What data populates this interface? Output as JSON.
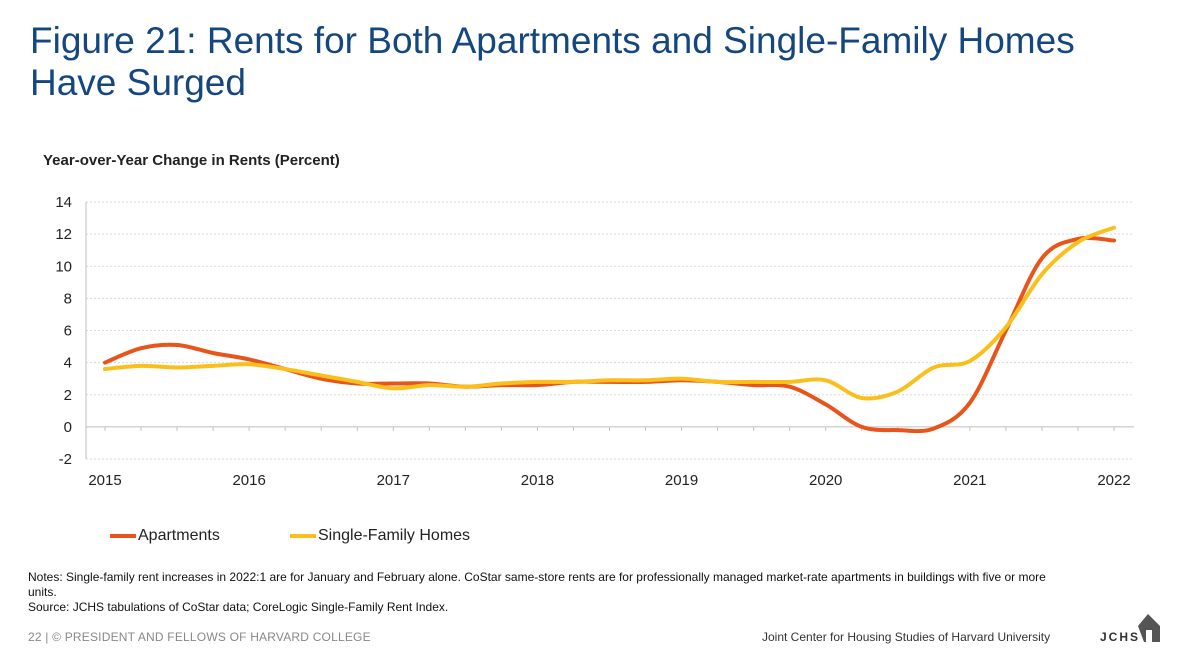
{
  "title": "Figure 21: Rents for Both Apartments and Single-Family Homes Have Surged",
  "chart_data": {
    "type": "line",
    "ylabel": "Year-over-Year Change in Rents (Percent)",
    "xlabel": "",
    "ylim": [
      -2,
      14
    ],
    "yticks": [
      "14",
      "12",
      "10",
      "8",
      "6",
      "4",
      "2",
      "0",
      "-2"
    ],
    "xlim": [
      2015,
      2022
    ],
    "xticks": [
      "2015",
      "2016",
      "2017",
      "2018",
      "2019",
      "2020",
      "2021",
      "2022"
    ],
    "grid": true,
    "legend_position": "bottom-left",
    "series": [
      {
        "name": "Apartments",
        "color": "#e8541a",
        "x": [
          2015.0,
          2015.25,
          2015.5,
          2015.75,
          2016.0,
          2016.25,
          2016.5,
          2016.75,
          2017.0,
          2017.25,
          2017.5,
          2017.75,
          2018.0,
          2018.25,
          2018.5,
          2018.75,
          2019.0,
          2019.25,
          2019.5,
          2019.75,
          2020.0,
          2020.25,
          2020.5,
          2020.75,
          2021.0,
          2021.25,
          2021.5,
          2021.75,
          2022.0
        ],
        "values": [
          4.0,
          4.9,
          5.1,
          4.6,
          4.2,
          3.6,
          3.0,
          2.7,
          2.7,
          2.7,
          2.5,
          2.6,
          2.6,
          2.8,
          2.8,
          2.8,
          2.9,
          2.8,
          2.6,
          2.5,
          1.4,
          0.0,
          -0.2,
          -0.1,
          1.5,
          6.0,
          10.5,
          11.7,
          11.6
        ]
      },
      {
        "name": "Single-Family Homes",
        "color": "#fbbf1c",
        "x": [
          2015.0,
          2015.25,
          2015.5,
          2015.75,
          2016.0,
          2016.25,
          2016.5,
          2016.75,
          2017.0,
          2017.25,
          2017.5,
          2017.75,
          2018.0,
          2018.25,
          2018.5,
          2018.75,
          2019.0,
          2019.25,
          2019.5,
          2019.75,
          2020.0,
          2020.25,
          2020.5,
          2020.75,
          2021.0,
          2021.25,
          2021.5,
          2021.75,
          2022.0
        ],
        "values": [
          3.6,
          3.8,
          3.7,
          3.8,
          3.9,
          3.6,
          3.2,
          2.8,
          2.4,
          2.6,
          2.5,
          2.7,
          2.8,
          2.8,
          2.9,
          2.9,
          3.0,
          2.8,
          2.8,
          2.8,
          2.9,
          1.8,
          2.2,
          3.7,
          4.1,
          6.2,
          9.5,
          11.5,
          12.4
        ]
      }
    ]
  },
  "notes": {
    "line1": "Notes: Single-family rent increases in 2022:1 are for January and February alone. CoStar same-store rents are for professionally managed market-rate apartments in buildings with five or more units.",
    "line2": "Source: JCHS tabulations of CoStar data; CoreLogic Single-Family Rent Index."
  },
  "footer": {
    "left": "22 | © PRESIDENT AND FELLOWS OF HARVARD COLLEGE",
    "right": "Joint Center for Housing Studies of Harvard University",
    "logo_text": "JCHS"
  }
}
